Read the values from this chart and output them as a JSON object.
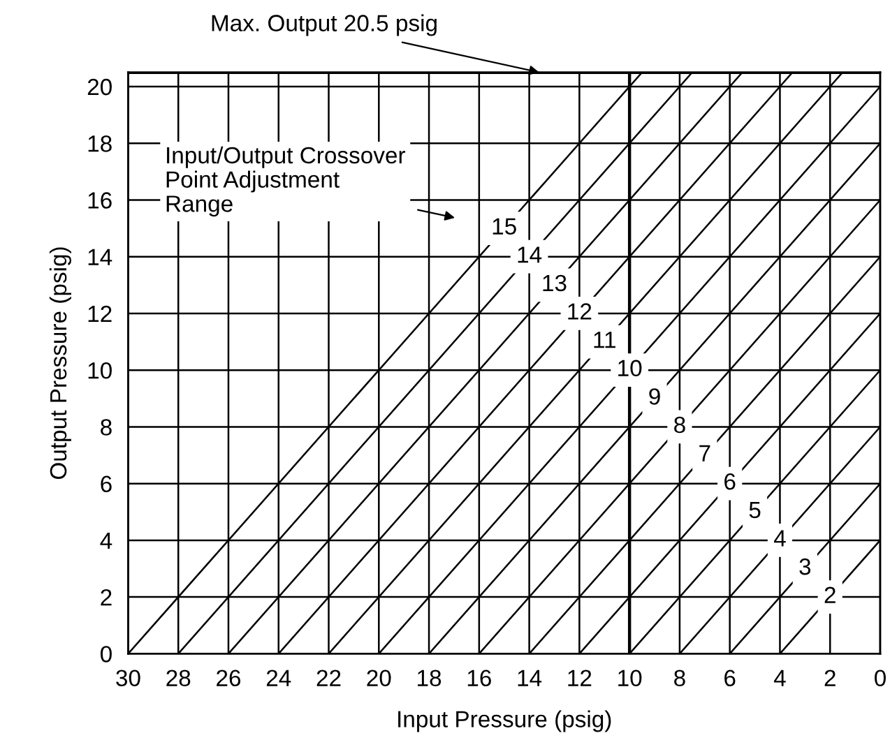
{
  "chart_data": {
    "type": "line",
    "xlabel": "Input Pressure (psig)",
    "ylabel": "Output Pressure (psig)",
    "xlim": [
      30,
      0
    ],
    "xticks": [
      30,
      28,
      26,
      24,
      22,
      20,
      18,
      16,
      14,
      12,
      10,
      8,
      6,
      4,
      2,
      0
    ],
    "ylim": [
      0,
      20.5
    ],
    "yticks": [
      0,
      2,
      4,
      6,
      8,
      10,
      12,
      14,
      16,
      18,
      20
    ],
    "grid": true,
    "legend": false,
    "marker": "none",
    "line_style": "solid",
    "ref_lines": [
      {
        "axis": "x",
        "value": 10,
        "color": "#000000"
      },
      {
        "axis": "y",
        "value": 20.5,
        "color": "#000000"
      }
    ],
    "annotations": [
      {
        "text": "Max. Output 20.5 psig",
        "x": 13.6,
        "y": 20.5
      },
      "Input/Output Crossover\nPoint Adjustment\nRange"
    ],
    "series": [
      {
        "name": "2",
        "color": "#000000",
        "x": [
          4,
          0
        ],
        "values": [
          0,
          4
        ]
      },
      {
        "name": "3",
        "color": "#000000",
        "x": [
          6,
          0
        ],
        "values": [
          0,
          6
        ]
      },
      {
        "name": "4",
        "color": "#000000",
        "x": [
          8,
          0
        ],
        "values": [
          0,
          8
        ]
      },
      {
        "name": "5",
        "color": "#000000",
        "x": [
          10,
          0
        ],
        "values": [
          0,
          10
        ]
      },
      {
        "name": "6",
        "color": "#000000",
        "x": [
          12,
          0
        ],
        "values": [
          0,
          12
        ]
      },
      {
        "name": "7",
        "color": "#000000",
        "x": [
          14,
          0
        ],
        "values": [
          0,
          14
        ]
      },
      {
        "name": "8",
        "color": "#000000",
        "x": [
          16,
          0
        ],
        "values": [
          0,
          16
        ]
      },
      {
        "name": "9",
        "color": "#000000",
        "x": [
          18,
          0
        ],
        "values": [
          0,
          18
        ]
      },
      {
        "name": "10",
        "color": "#000000",
        "x": [
          20,
          0
        ],
        "values": [
          0,
          20
        ]
      },
      {
        "name": "11",
        "color": "#000000",
        "x": [
          22,
          1.5
        ],
        "values": [
          0,
          20.5
        ]
      },
      {
        "name": "12",
        "color": "#000000",
        "x": [
          24,
          3.5
        ],
        "values": [
          0,
          20.5
        ]
      },
      {
        "name": "13",
        "color": "#000000",
        "x": [
          26,
          5.5
        ],
        "values": [
          0,
          20.5
        ]
      },
      {
        "name": "14",
        "color": "#000000",
        "x": [
          28,
          7.5
        ],
        "values": [
          0,
          20.5
        ]
      },
      {
        "name": "15",
        "color": "#000000",
        "x": [
          30,
          9.5
        ],
        "values": [
          0,
          20.5
        ]
      }
    ]
  }
}
